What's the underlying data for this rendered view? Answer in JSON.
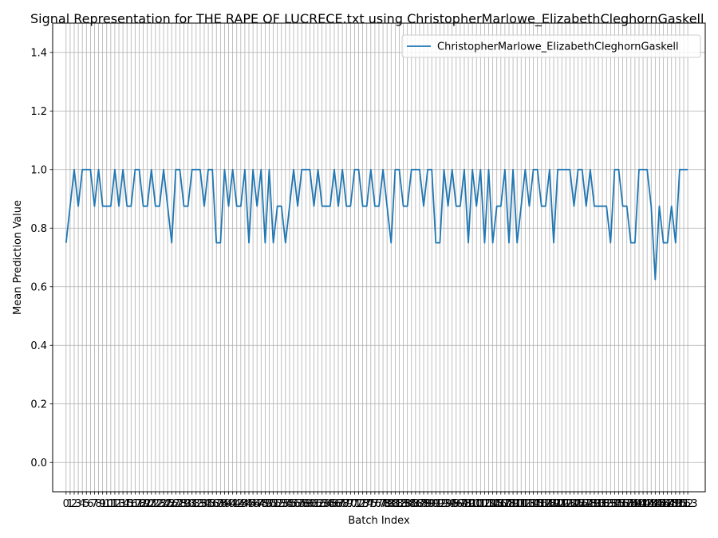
{
  "chart_data": {
    "type": "line",
    "title": "Signal Representation for THE RAPE OF LUCRECE.txt using ChristopherMarlowe_ElizabethCleghornGaskell",
    "xlabel": "Batch Index",
    "ylabel": "Mean Prediction Value",
    "xlim": [
      -3.3,
      157.3
    ],
    "ylim": [
      -0.1,
      1.5
    ],
    "yticks": [
      0.0,
      0.2,
      0.4,
      0.6,
      0.8,
      1.0,
      1.2,
      1.4
    ],
    "grid": true,
    "legend": "top-right",
    "series": [
      {
        "name": "ChristopherMarlowe_ElizabethCleghornGaskell",
        "color": "#1f77b4",
        "values": [
          0.75,
          0.875,
          1.0,
          0.875,
          1.0,
          1.0,
          1.0,
          0.875,
          1.0,
          0.875,
          0.875,
          0.875,
          1.0,
          0.875,
          1.0,
          0.875,
          0.875,
          1.0,
          1.0,
          0.875,
          0.875,
          1.0,
          0.875,
          0.875,
          1.0,
          0.875,
          0.75,
          1.0,
          1.0,
          0.875,
          0.875,
          1.0,
          1.0,
          1.0,
          0.875,
          1.0,
          1.0,
          0.75,
          0.75,
          1.0,
          0.875,
          1.0,
          0.875,
          0.875,
          1.0,
          0.75,
          1.0,
          0.875,
          1.0,
          0.75,
          1.0,
          0.75,
          0.875,
          0.875,
          0.75,
          0.875,
          1.0,
          0.875,
          1.0,
          1.0,
          1.0,
          0.875,
          1.0,
          0.875,
          0.875,
          0.875,
          1.0,
          0.875,
          1.0,
          0.875,
          0.875,
          1.0,
          1.0,
          0.875,
          0.875,
          1.0,
          0.875,
          0.875,
          1.0,
          0.875,
          0.75,
          1.0,
          1.0,
          0.875,
          0.875,
          1.0,
          1.0,
          1.0,
          0.875,
          1.0,
          1.0,
          0.75,
          0.75,
          1.0,
          0.875,
          1.0,
          0.875,
          0.875,
          1.0,
          0.75,
          1.0,
          0.875,
          1.0,
          0.75,
          1.0,
          0.75,
          0.875,
          0.875,
          1.0,
          0.75,
          1.0,
          0.75,
          0.875,
          1.0,
          0.875,
          1.0,
          1.0,
          0.875,
          0.875,
          1.0,
          0.75,
          1.0,
          1.0,
          1.0,
          1.0,
          0.875,
          1.0,
          1.0,
          0.875,
          1.0,
          0.875,
          0.875,
          0.875,
          0.875,
          0.75,
          1.0,
          1.0,
          0.875,
          0.875,
          0.75,
          0.75,
          1.0,
          1.0,
          1.0,
          0.875,
          0.625,
          0.875,
          0.75,
          0.75,
          0.875,
          0.75,
          1.0,
          1.0,
          1.0
        ]
      }
    ],
    "xtick_labels_visible": [
      "0",
      "1",
      "2",
      "3",
      "4",
      "5",
      "6",
      "7",
      "8",
      "9",
      "10",
      "11",
      "12",
      "13",
      "14",
      "15",
      "16",
      "17",
      "18",
      "19",
      "20",
      "21",
      "22",
      "23",
      "24",
      "25",
      "26",
      "27",
      "28",
      "29",
      "30",
      "31",
      "32",
      "33",
      "34",
      "35",
      "36",
      "37",
      "38",
      "39",
      "40",
      "41",
      "42",
      "43",
      "44",
      "45",
      "46",
      "47",
      "48",
      "49",
      "50",
      "51",
      "52",
      "53",
      "54",
      "55",
      "56",
      "57",
      "58",
      "59",
      "60",
      "61",
      "62",
      "63",
      "64",
      "65",
      "66",
      "67",
      "68",
      "69",
      "70",
      "71",
      "72",
      "73",
      "74",
      "75",
      "76",
      "77",
      "78",
      "79",
      "80",
      "81",
      "82",
      "83",
      "84",
      "85",
      "86",
      "87",
      "88",
      "89",
      "90",
      "91",
      "92",
      "93",
      "94",
      "95",
      "96",
      "97",
      "98",
      "99",
      "100",
      "101",
      "102",
      "103",
      "104",
      "105",
      "106",
      "107",
      "108",
      "109",
      "110",
      "111",
      "112",
      "113",
      "114",
      "115",
      "116",
      "117",
      "118",
      "119",
      "120",
      "121",
      "122",
      "123",
      "124",
      "125",
      "126",
      "127",
      "128",
      "129",
      "130",
      "131",
      "132",
      "133",
      "134",
      "135",
      "136",
      "137",
      "138",
      "139",
      "140",
      "141",
      "142",
      "143",
      "144",
      "145",
      "146",
      "147",
      "148",
      "149",
      "150",
      "151",
      "152",
      "153"
    ]
  }
}
